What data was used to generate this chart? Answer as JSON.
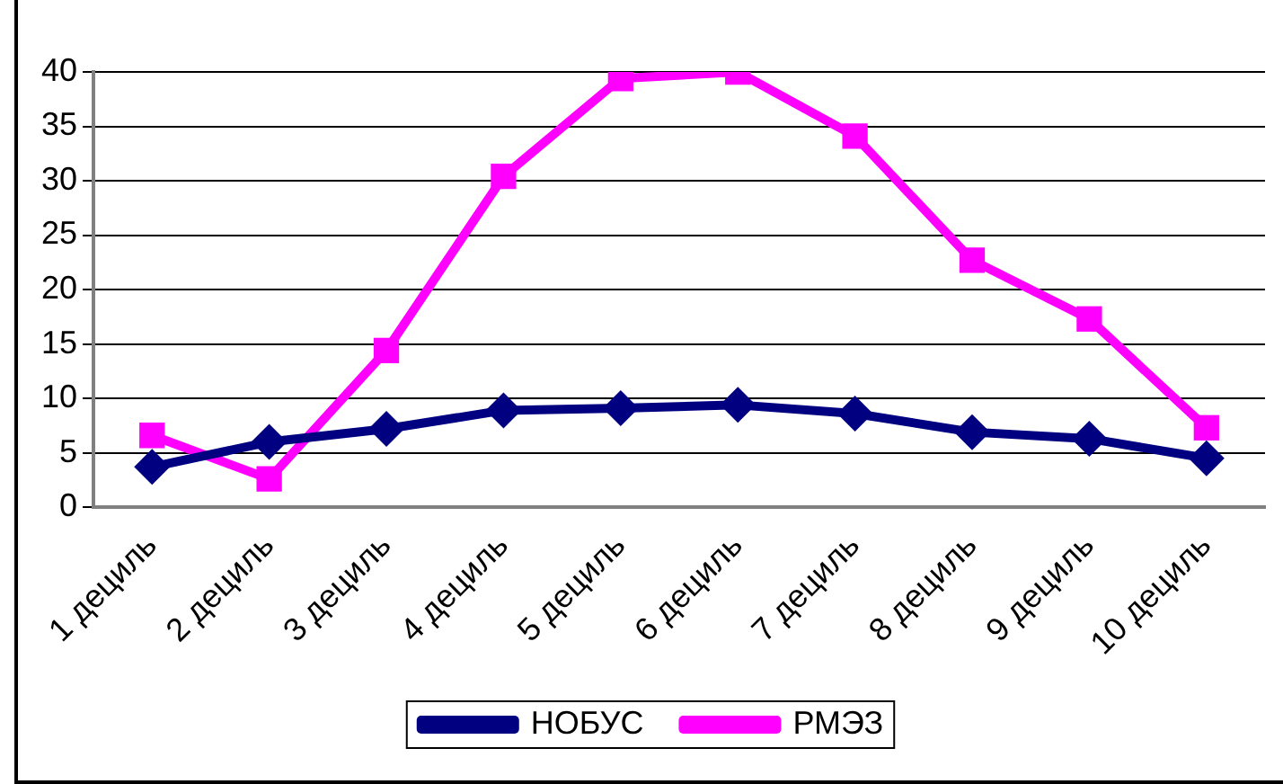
{
  "chart_data": {
    "type": "line",
    "categories": [
      "1 дециль",
      "2 дециль",
      "3 дециль",
      "4 дециль",
      "5 дециль",
      "6 дециль",
      "7 дециль",
      "8 дециль",
      "9 дециль",
      "10 дециль"
    ],
    "series": [
      {
        "name": "НОБУС",
        "color": "#000080",
        "marker": "diamond",
        "values": [
          3.7,
          6.0,
          7.2,
          8.9,
          9.1,
          9.4,
          8.6,
          6.9,
          6.3,
          4.5
        ]
      },
      {
        "name": "РМЭЗ",
        "color": "#ff00ff",
        "marker": "square",
        "values": [
          6.6,
          2.6,
          14.4,
          30.4,
          39.4,
          40,
          34.1,
          22.7,
          17.3,
          7.3
        ]
      }
    ],
    "ylim": [
      0,
      40
    ],
    "yticks": [
      0,
      5,
      10,
      15,
      20,
      25,
      30,
      35,
      40
    ],
    "grid": "y",
    "legend": "bottom"
  }
}
